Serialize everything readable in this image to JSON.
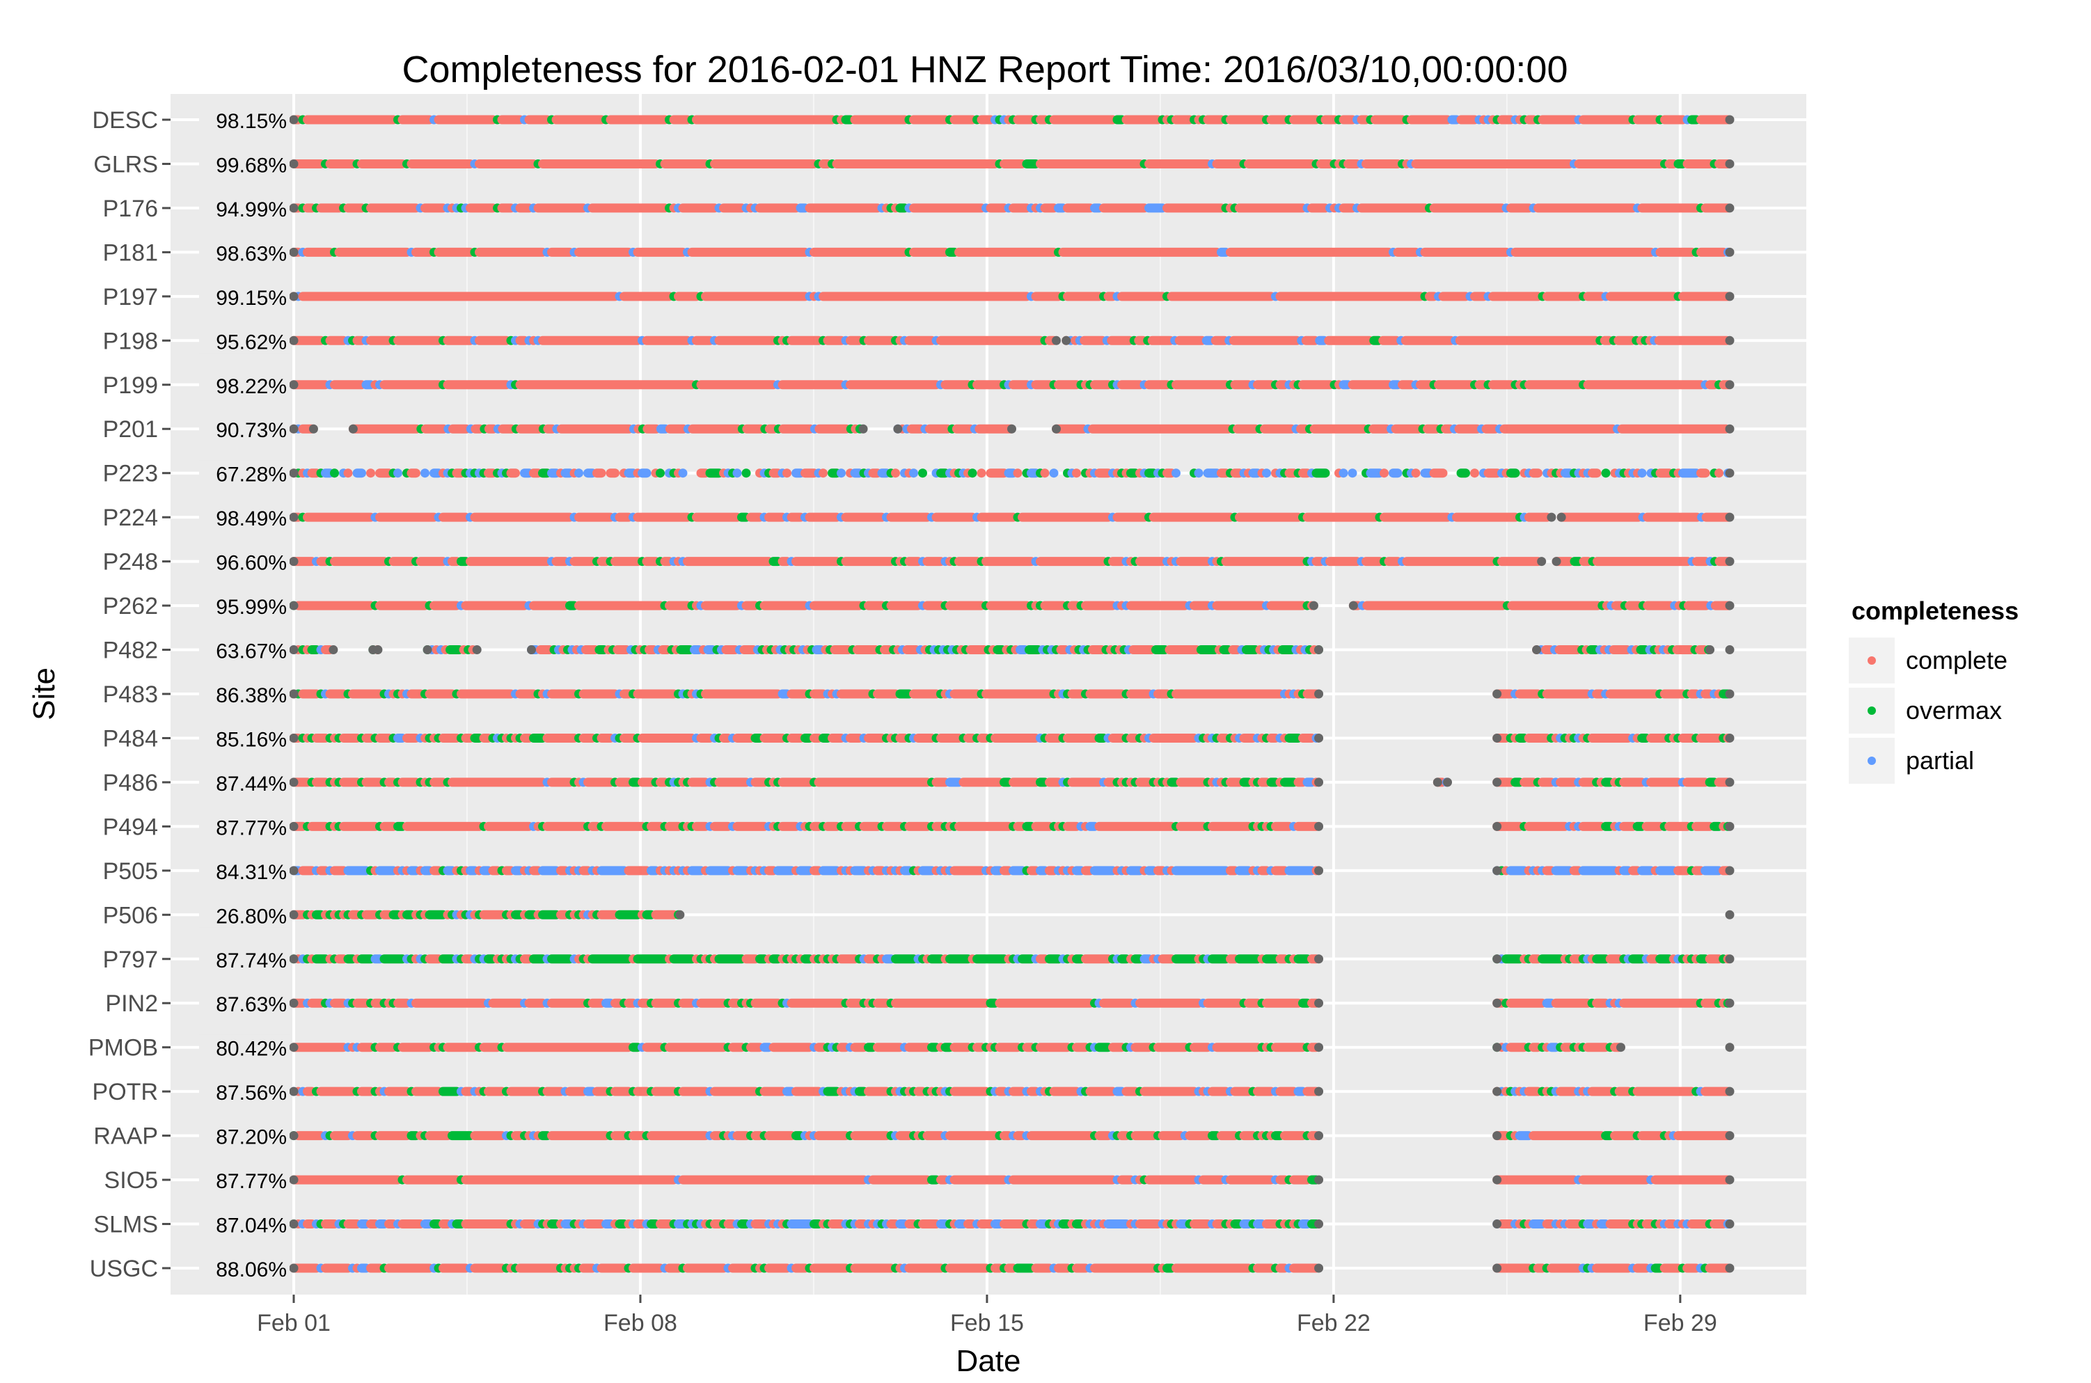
{
  "chart_data": {
    "type": "scatter",
    "title": "Completeness for  2016-02-01 HNZ  Report Time:  2016/03/10,00:00:00",
    "xlabel": "Date",
    "ylabel": "Site",
    "xlim": [
      "2016-02-01",
      "2016-03-01"
    ],
    "x_ticks": [
      {
        "date": "2016-02-01",
        "label": "Feb 01"
      },
      {
        "date": "2016-02-08",
        "label": "Feb 08"
      },
      {
        "date": "2016-02-15",
        "label": "Feb 15"
      },
      {
        "date": "2016-02-22",
        "label": "Feb 22"
      },
      {
        "date": "2016-02-29",
        "label": "Feb 29"
      }
    ],
    "grid": true,
    "legend": {
      "title": "completeness",
      "placement": "right",
      "entries": [
        {
          "name": "complete",
          "color": "#F8766D"
        },
        {
          "name": "overmax",
          "color": "#00BA38"
        },
        {
          "name": "partial",
          "color": "#619CFF"
        }
      ]
    },
    "colors": {
      "complete": "#F8766D",
      "overmax": "#00BA38",
      "partial": "#619CFF",
      "endpoint": "#666666",
      "panel": "#EBEBEB",
      "grid": "#FFFFFF"
    },
    "sites": [
      {
        "name": "USGC",
        "pct": "88.06%",
        "coverage": [
          [
            "2016-02-01",
            "2016-02-21.7"
          ],
          [
            "2016-02-25.3",
            "2016-03-01"
          ]
        ],
        "mix": {
          "overmax": 0.16,
          "partial": 0.08
        }
      },
      {
        "name": "SLMS",
        "pct": "87.04%",
        "coverage": [
          [
            "2016-02-01",
            "2016-02-21.7"
          ],
          [
            "2016-02-25.3",
            "2016-03-01"
          ]
        ],
        "mix": {
          "overmax": 0.18,
          "partial": 0.3
        }
      },
      {
        "name": "SIO5",
        "pct": "87.77%",
        "coverage": [
          [
            "2016-02-01",
            "2016-02-21.7"
          ],
          [
            "2016-02-25.3",
            "2016-03-01"
          ]
        ],
        "mix": {
          "overmax": 0.02,
          "partial": 0.04
        }
      },
      {
        "name": "RAAP",
        "pct": "87.20%",
        "coverage": [
          [
            "2016-02-01",
            "2016-02-21.7"
          ],
          [
            "2016-02-25.3",
            "2016-03-01"
          ]
        ],
        "mix": {
          "overmax": 0.18,
          "partial": 0.06
        }
      },
      {
        "name": "POTR",
        "pct": "87.56%",
        "coverage": [
          [
            "2016-02-01",
            "2016-02-21.7"
          ],
          [
            "2016-02-25.3",
            "2016-03-01"
          ]
        ],
        "mix": {
          "overmax": 0.1,
          "partial": 0.1
        }
      },
      {
        "name": "PMOB",
        "pct": "80.42%",
        "coverage": [
          [
            "2016-02-01",
            "2016-02-21.7"
          ],
          [
            "2016-02-25.3",
            "2016-02-27.8"
          ],
          [
            "2016-03-01",
            "2016-03-01"
          ]
        ],
        "mix": {
          "overmax": 0.16,
          "partial": 0.08
        }
      },
      {
        "name": "PIN2",
        "pct": "87.63%",
        "coverage": [
          [
            "2016-02-01",
            "2016-02-21.7"
          ],
          [
            "2016-02-25.3",
            "2016-03-01"
          ]
        ],
        "mix": {
          "overmax": 0.1,
          "partial": 0.06
        }
      },
      {
        "name": "P797",
        "pct": "87.74%",
        "coverage": [
          [
            "2016-02-01",
            "2016-02-21.7"
          ],
          [
            "2016-02-25.3",
            "2016-03-01"
          ]
        ],
        "mix": {
          "overmax": 0.62,
          "partial": 0.1
        }
      },
      {
        "name": "P506",
        "pct": "26.80%",
        "coverage": [
          [
            "2016-02-01",
            "2016-02-08.8"
          ],
          [
            "2016-03-01",
            "2016-03-01"
          ]
        ],
        "mix": {
          "overmax": 0.45,
          "partial": 0.05
        }
      },
      {
        "name": "P505",
        "pct": "84.31%",
        "coverage": [
          [
            "2016-02-01",
            "2016-02-21.7"
          ],
          [
            "2016-02-25.3",
            "2016-03-01"
          ]
        ],
        "mix": {
          "overmax": 0.05,
          "partial": 0.6
        }
      },
      {
        "name": "P494",
        "pct": "87.77%",
        "coverage": [
          [
            "2016-02-01",
            "2016-02-21.7"
          ],
          [
            "2016-02-25.3",
            "2016-03-01"
          ]
        ],
        "mix": {
          "overmax": 0.16,
          "partial": 0.05
        }
      },
      {
        "name": "P486",
        "pct": "87.44%",
        "coverage": [
          [
            "2016-02-01",
            "2016-02-21.7"
          ],
          [
            "2016-02-24.1",
            "2016-02-24.3"
          ],
          [
            "2016-02-25.3",
            "2016-03-01"
          ]
        ],
        "mix": {
          "overmax": 0.18,
          "partial": 0.06
        }
      },
      {
        "name": "P484",
        "pct": "85.16%",
        "coverage": [
          [
            "2016-02-01",
            "2016-02-21.7"
          ],
          [
            "2016-02-25.3",
            "2016-03-01"
          ]
        ],
        "mix": {
          "overmax": 0.22,
          "partial": 0.08
        }
      },
      {
        "name": "P483",
        "pct": "86.38%",
        "coverage": [
          [
            "2016-02-01",
            "2016-02-21.7"
          ],
          [
            "2016-02-25.3",
            "2016-03-01"
          ]
        ],
        "mix": {
          "overmax": 0.12,
          "partial": 0.08
        }
      },
      {
        "name": "P482",
        "pct": "63.67%",
        "coverage": [
          [
            "2016-02-01",
            "2016-02-01.8"
          ],
          [
            "2016-02-02.6",
            "2016-02-02.7"
          ],
          [
            "2016-02-03.7",
            "2016-02-04.7"
          ],
          [
            "2016-02-05.8",
            "2016-02-21.7"
          ],
          [
            "2016-02-26.1",
            "2016-02-29.6"
          ],
          [
            "2016-03-01",
            "2016-03-01"
          ]
        ],
        "mix": {
          "overmax": 0.25,
          "partial": 0.2
        }
      },
      {
        "name": "P262",
        "pct": "95.99%",
        "coverage": [
          [
            "2016-02-01",
            "2016-02-21.6"
          ],
          [
            "2016-02-22.4",
            "2016-03-01"
          ]
        ],
        "mix": {
          "overmax": 0.06,
          "partial": 0.06
        }
      },
      {
        "name": "P248",
        "pct": "96.60%",
        "coverage": [
          [
            "2016-02-01",
            "2016-02-26.2"
          ],
          [
            "2016-02-26.5",
            "2016-03-01"
          ]
        ],
        "mix": {
          "overmax": 0.08,
          "partial": 0.05
        }
      },
      {
        "name": "P224",
        "pct": "98.49%",
        "coverage": [
          [
            "2016-02-01",
            "2016-02-26.4"
          ],
          [
            "2016-02-26.6",
            "2016-03-01"
          ]
        ],
        "mix": {
          "overmax": 0.03,
          "partial": 0.04
        }
      },
      {
        "name": "P223",
        "pct": "67.28%",
        "coverage": [
          [
            "2016-02-01",
            "2016-03-01"
          ]
        ],
        "mix": {
          "overmax": 0.22,
          "partial": 0.4
        },
        "sparse": true
      },
      {
        "name": "P201",
        "pct": "90.73%",
        "coverage": [
          [
            "2016-02-01",
            "2016-02-01.4"
          ],
          [
            "2016-02-02.2",
            "2016-02-12.5"
          ],
          [
            "2016-02-13.2",
            "2016-02-15.5"
          ],
          [
            "2016-02-16.4",
            "2016-03-01"
          ]
        ],
        "mix": {
          "overmax": 0.05,
          "partial": 0.06
        }
      },
      {
        "name": "P199",
        "pct": "98.22%",
        "coverage": [
          [
            "2016-02-01",
            "2016-03-01"
          ]
        ],
        "mix": {
          "overmax": 0.06,
          "partial": 0.06
        }
      },
      {
        "name": "P198",
        "pct": "95.62%",
        "coverage": [
          [
            "2016-02-01",
            "2016-02-16.4"
          ],
          [
            "2016-02-16.6",
            "2016-03-01"
          ]
        ],
        "mix": {
          "overmax": 0.06,
          "partial": 0.08
        }
      },
      {
        "name": "P197",
        "pct": "99.15%",
        "coverage": [
          [
            "2016-02-01",
            "2016-03-01"
          ]
        ],
        "mix": {
          "overmax": 0.03,
          "partial": 0.04
        }
      },
      {
        "name": "P181",
        "pct": "98.63%",
        "coverage": [
          [
            "2016-02-01",
            "2016-03-01"
          ]
        ],
        "mix": {
          "overmax": 0.03,
          "partial": 0.03
        }
      },
      {
        "name": "P176",
        "pct": "94.99%",
        "coverage": [
          [
            "2016-02-01",
            "2016-03-01"
          ]
        ],
        "mix": {
          "overmax": 0.05,
          "partial": 0.12
        }
      },
      {
        "name": "GLRS",
        "pct": "99.68%",
        "coverage": [
          [
            "2016-02-01",
            "2016-03-01"
          ]
        ],
        "mix": {
          "overmax": 0.08,
          "partial": 0.03
        }
      },
      {
        "name": "DESC",
        "pct": "98.15%",
        "coverage": [
          [
            "2016-02-01",
            "2016-03-01"
          ]
        ],
        "mix": {
          "overmax": 0.1,
          "partial": 0.06
        }
      }
    ]
  }
}
